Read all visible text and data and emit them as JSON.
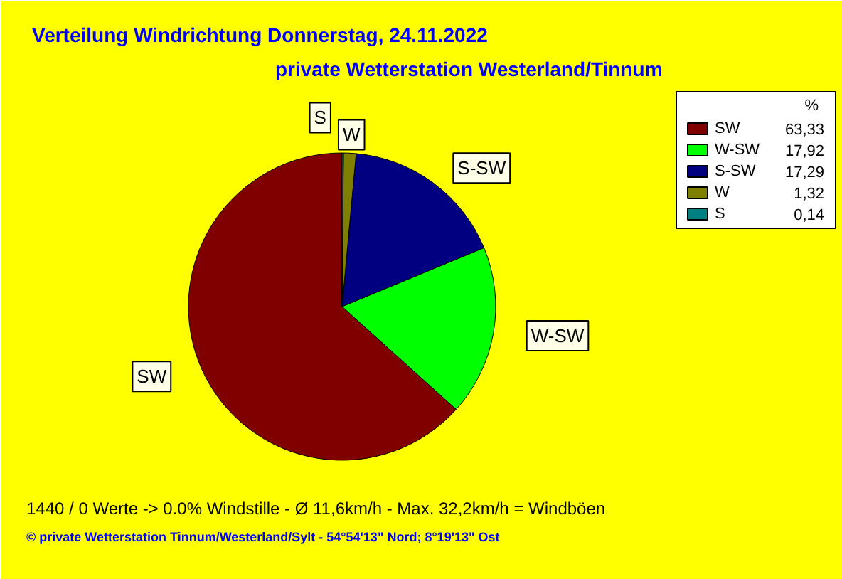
{
  "chart_data": {
    "type": "pie",
    "title": "Verteilung Windrichtung   Donnerstag, 24.11.2022",
    "subtitle": "private Wetterstation Westerland/Tinnum",
    "legend_title": "%",
    "categories": [
      "SW",
      "W-SW",
      "S-SW",
      "W",
      "S"
    ],
    "values": [
      63.33,
      17.92,
      17.29,
      1.32,
      0.14
    ],
    "value_labels": [
      "63,33",
      "17,92",
      "17,29",
      "1,32",
      "0,14"
    ],
    "colors": [
      "#800000",
      "#00ff00",
      "#000080",
      "#808000",
      "#008080"
    ],
    "legend": "top right",
    "annotations": [
      "1440 / 0 Werte  -> 0.0% Windstille   -   Ø 11,6km/h  -  Max. 32,2km/h = Windböen",
      "© private Wetterstation Tinnum/Westerland/Sylt   -   54°54'13\" Nord; 8°19'13\" Ost"
    ]
  }
}
